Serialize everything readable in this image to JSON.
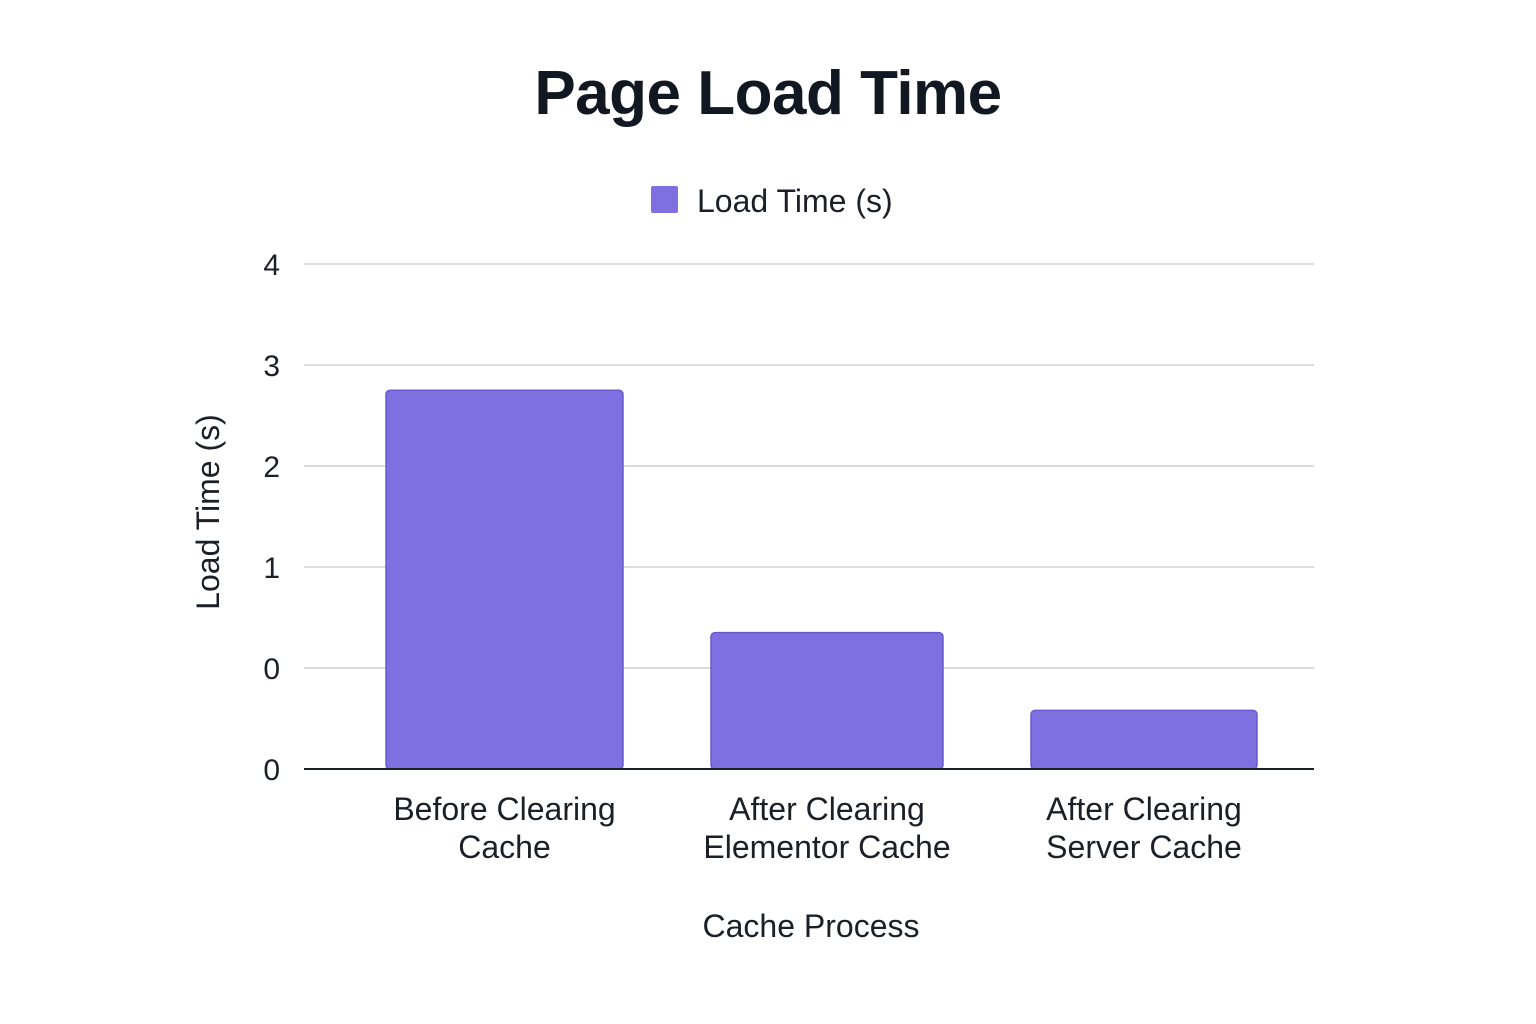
{
  "chart_data": {
    "type": "bar",
    "title": "Page Load Time",
    "categories": [
      [
        "Before Clearing",
        "Cache"
      ],
      [
        "After Clearing",
        "Elementor Cache"
      ],
      [
        "After Clearing",
        "Server Cache"
      ]
    ],
    "series": [
      {
        "name": "Load Time (s)",
        "values": [
          3.75,
          1.35,
          0.58
        ],
        "color": "#806fe0"
      }
    ],
    "xlabel": "Cache Process",
    "ylabel": "Load Time (s)",
    "y_ticks": [
      "4",
      "3",
      "2",
      "1",
      "0",
      "0"
    ],
    "grid": true,
    "legend": "top-center"
  }
}
